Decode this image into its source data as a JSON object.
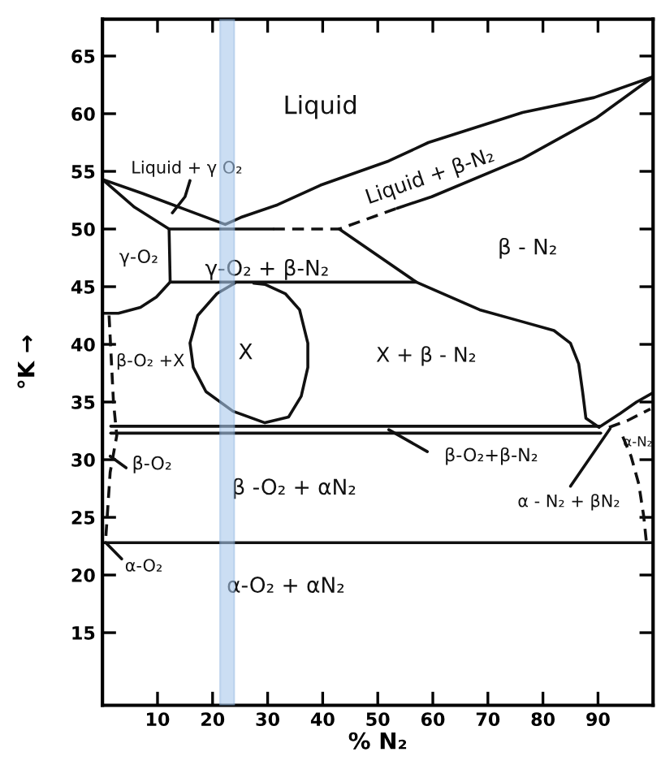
{
  "chart_data": {
    "type": "line",
    "xlabel": "% N₂",
    "ylabel": "°K →",
    "xlim": [
      0,
      100
    ],
    "ylim": [
      8.7,
      68.2
    ],
    "xticks": [
      10,
      20,
      30,
      40,
      50,
      60,
      70,
      80,
      90
    ],
    "yticks": [
      15,
      20,
      25,
      30,
      35,
      40,
      45,
      50,
      55,
      60,
      65
    ],
    "series": [
      {
        "color": "#111111",
        "line_style": "solid",
        "x": [
          53.5,
          59.8,
          76.3,
          89.6,
          100,
          89.3,
          76.3,
          59.2,
          52.0,
          39.6,
          31.8,
          25.1,
          22.3,
          15.0,
          7.2,
          0,
          5.8,
          12.1,
          31.0
        ],
        "values": [
          51.8,
          52.8,
          56.1,
          59.6,
          63.2,
          61.4,
          60.1,
          57.5,
          55.9,
          53.8,
          52.1,
          51.0,
          50.4,
          51.7,
          53.1,
          54.3,
          51.9,
          50.0,
          50.0
        ]
      },
      {
        "color": "#111111",
        "line_style": "dashed",
        "x": [
          31.0,
          43.0,
          53.5
        ],
        "values": [
          50.0,
          50.0,
          51.8
        ]
      },
      {
        "color": "#111111",
        "line_style": "solid",
        "x": [
          12.1,
          12.3
        ],
        "values": [
          50.0,
          45.4
        ]
      },
      {
        "color": "#111111",
        "line_style": "solid",
        "x": [
          0,
          2.9,
          6.9,
          9.8,
          12.3,
          57.0
        ],
        "values": [
          42.7,
          42.7,
          43.2,
          44.1,
          45.4,
          45.4
        ]
      },
      {
        "color": "#111111",
        "line_style": "solid",
        "x": [
          43.0,
          57.0,
          68.5,
          76.0,
          82.0,
          85.0,
          86.5,
          87.2,
          87.8,
          90.2
        ],
        "values": [
          50.0,
          45.4,
          43.0,
          42.0,
          41.2,
          40.1,
          38.3,
          35.9,
          33.6,
          32.8
        ]
      },
      {
        "color": "#111111",
        "line_style": "solid",
        "x": [
          24.0,
          20.8,
          17.3,
          15.9,
          16.5,
          18.8,
          23.7,
          29.5,
          33.8,
          36.1,
          37.3,
          37.3,
          35.8,
          33.2,
          29.5,
          27.5
        ],
        "values": [
          45.3,
          44.4,
          42.5,
          40.1,
          38.0,
          35.9,
          34.2,
          33.2,
          33.7,
          35.5,
          38.0,
          40.1,
          43.0,
          44.4,
          45.2,
          45.3
        ]
      },
      {
        "color": "#111111",
        "line_style": "solid",
        "x": [
          1.5,
          90.5,
          94.0,
          97.0,
          100
        ],
        "values": [
          32.9,
          32.9,
          34.0,
          35.0,
          35.8
        ]
      },
      {
        "color": "#111111",
        "line_style": "solid",
        "x": [
          1.5,
          90.5
        ],
        "values": [
          32.3,
          32.3
        ]
      },
      {
        "color": "#111111",
        "line_style": "solid",
        "x": [
          0,
          100
        ],
        "values": [
          22.8,
          22.8
        ]
      },
      {
        "color": "#111111",
        "line_style": "dashed",
        "x": [
          1.2,
          1.5,
          2.0,
          2.6,
          1.4,
          0.6
        ],
        "values": [
          42.5,
          39.7,
          35.0,
          32.1,
          28.9,
          23.2
        ]
      },
      {
        "color": "#111111",
        "line_style": "dashed",
        "x": [
          92.0,
          95.4,
          99.5
        ],
        "values": [
          32.8,
          33.4,
          34.4
        ]
      },
      {
        "color": "#111111",
        "line_style": "dashed",
        "x": [
          94.5,
          96.0,
          97.4,
          98.3,
          98.8
        ],
        "values": [
          32.0,
          30.3,
          27.9,
          25.1,
          22.8
        ]
      },
      {
        "color": "#111111",
        "line_style": "solid",
        "x": [
          15.9,
          15.0,
          12.7
        ],
        "values": [
          54.2,
          52.8,
          51.4
        ]
      },
      {
        "color": "#111111",
        "line_style": "solid",
        "x": [
          4.3,
          1.4
        ],
        "values": [
          29.3,
          30.3
        ]
      },
      {
        "color": "#111111",
        "line_style": "solid",
        "x": [
          3.5,
          0.6
        ],
        "values": [
          21.4,
          22.8
        ]
      },
      {
        "color": "#111111",
        "line_style": "solid",
        "x": [
          59.0,
          52.0
        ],
        "values": [
          30.7,
          32.6
        ]
      },
      {
        "color": "#111111",
        "line_style": "solid",
        "x": [
          85.0,
          92.2
        ],
        "values": [
          27.7,
          32.7
        ]
      }
    ],
    "bands": [
      {
        "axis": "x",
        "from": 21.4,
        "to": 23.9,
        "color": "#a9c9ec"
      }
    ],
    "annotations": [
      "Liquid",
      "Liquid + γ O₂",
      "γ-O₂",
      "γ-O₂ + β-N₂",
      "Liquid + β-N₂",
      "β - N₂",
      "X",
      "X + β - N₂",
      "β-O₂ +X",
      "β-O₂",
      "β -O₂ + αN₂",
      "α-O₂ + αN₂",
      "α-O₂",
      "β-O₂+β-N₂",
      "α - N₂ + βN₂",
      "α-N₂"
    ]
  }
}
